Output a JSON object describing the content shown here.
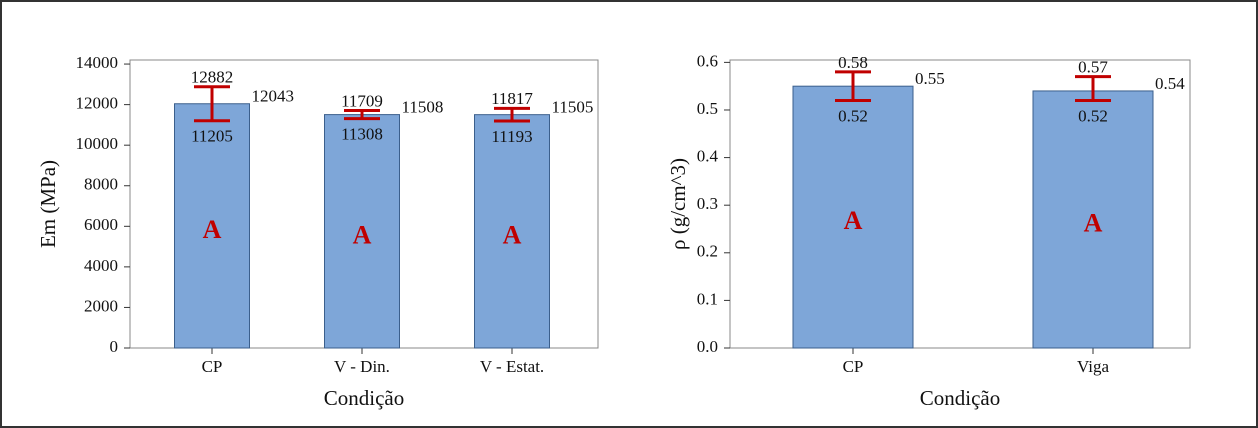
{
  "chart_data": [
    {
      "type": "bar",
      "y_label": "Em (MPa)",
      "x_label": "Condição",
      "categories": [
        "CP",
        "V - Din.",
        "V - Estat."
      ],
      "values": [
        12043,
        11508,
        11505
      ],
      "upper": [
        12882,
        11709,
        11817
      ],
      "lower": [
        11205,
        11308,
        11193
      ],
      "letters": [
        "A",
        "A",
        "A"
      ],
      "color": "#7ea6d8",
      "error_color": "#c00000",
      "ylim": [
        0,
        14200
      ],
      "yticks": [
        0,
        2000,
        4000,
        6000,
        8000,
        10000,
        12000,
        14000
      ]
    },
    {
      "type": "bar",
      "y_label": "ρ (g/cm^3)",
      "x_label": "Condição",
      "categories": [
        "CP",
        "Viga"
      ],
      "values": [
        0.55,
        0.54
      ],
      "upper": [
        0.58,
        0.57
      ],
      "lower": [
        0.52,
        0.52
      ],
      "letters": [
        "A",
        "A"
      ],
      "color": "#7ea6d8",
      "error_color": "#c00000",
      "ylim": [
        0,
        0.605
      ],
      "yticks": [
        {
          "value": 0,
          "label": "0.0"
        },
        0.1,
        0.2,
        0.3,
        0.4,
        0.5,
        0.6
      ]
    }
  ]
}
